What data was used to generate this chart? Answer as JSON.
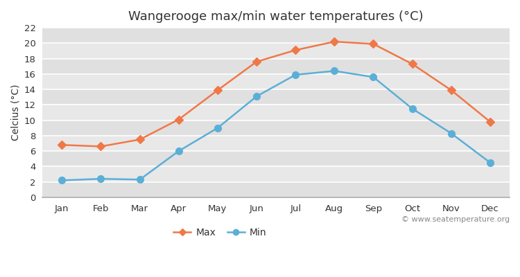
{
  "title": "Wangerooge max/min water temperatures (°C)",
  "ylabel": "Celcius (°C)",
  "months": [
    "Jan",
    "Feb",
    "Mar",
    "Apr",
    "May",
    "Jun",
    "Jul",
    "Aug",
    "Sep",
    "Oct",
    "Nov",
    "Dec"
  ],
  "max_values": [
    6.8,
    6.6,
    7.5,
    10.1,
    13.9,
    17.6,
    19.1,
    20.2,
    19.9,
    17.3,
    13.9,
    9.8
  ],
  "min_values": [
    2.2,
    2.4,
    2.3,
    6.0,
    9.0,
    13.1,
    15.9,
    16.4,
    15.6,
    11.5,
    8.3,
    4.5
  ],
  "max_color": "#f07848",
  "min_color": "#5bafd6",
  "figure_bg_color": "#ffffff",
  "plot_bg_color": "#e8e8e8",
  "grid_color": "#ffffff",
  "ylim": [
    0,
    22
  ],
  "yticks": [
    0,
    2,
    4,
    6,
    8,
    10,
    12,
    14,
    16,
    18,
    20,
    22
  ],
  "legend_max": "Max",
  "legend_min": "Min",
  "watermark": "© www.seatemperature.org",
  "title_fontsize": 13,
  "label_fontsize": 10,
  "tick_fontsize": 9.5,
  "watermark_fontsize": 8,
  "line_width": 1.8,
  "max_marker": "D",
  "min_marker": "o",
  "max_marker_size": 6,
  "min_marker_size": 7
}
